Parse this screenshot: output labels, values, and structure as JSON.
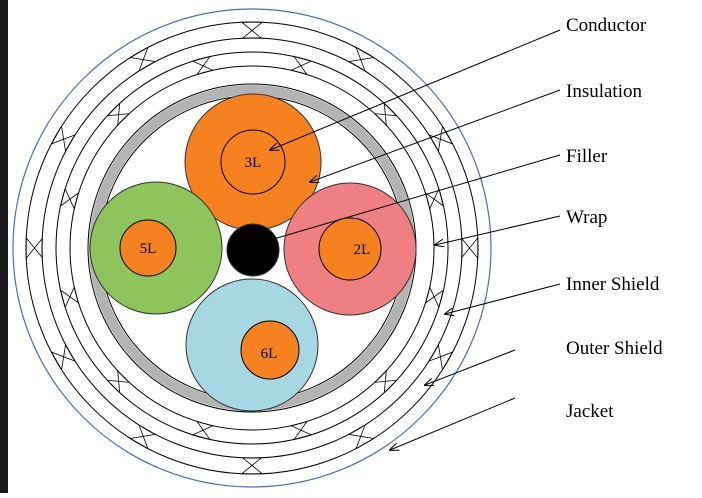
{
  "diagram": {
    "cores": [
      {
        "label": "3L",
        "insulation_color": "#f5821f"
      },
      {
        "label": "2L",
        "insulation_color": "#ef7f83"
      },
      {
        "label": "5L",
        "insulation_color": "#8dc45b"
      },
      {
        "label": "6L",
        "insulation_color": "#a6d8e4"
      }
    ],
    "callouts": [
      {
        "label": "Conductor"
      },
      {
        "label": "Insulation"
      },
      {
        "label": "Filler"
      },
      {
        "label": "Wrap"
      },
      {
        "label": "Inner Shield"
      },
      {
        "label": "Outer Shield"
      },
      {
        "label": "Jacket"
      }
    ]
  },
  "colors": {
    "conductor": "#f5821f",
    "filler": "#000000",
    "wrap": "#b3b3b3",
    "jacket_outline": "#4a6fb5",
    "line": "#000000",
    "left_bar": "#1a1a1a"
  }
}
